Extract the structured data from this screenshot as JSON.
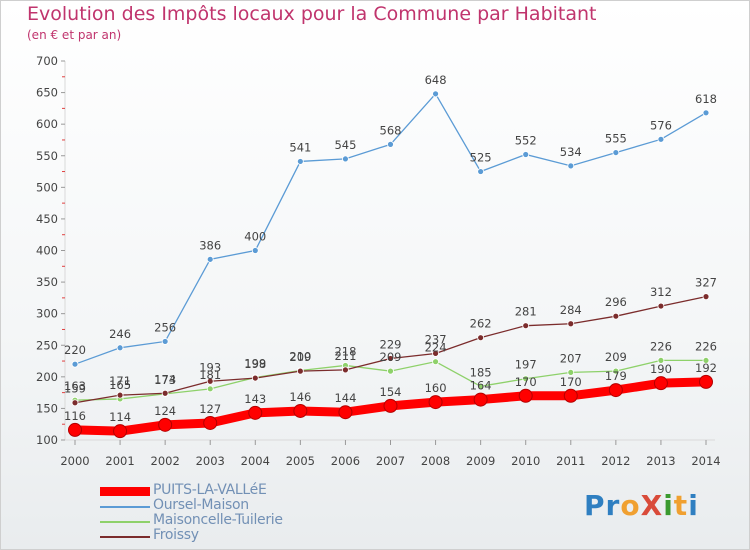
{
  "header": {
    "title": "Evolution des Impôts locaux pour la Commune par Habitant",
    "subtitle": "(en € et par an)"
  },
  "logo": {
    "text": "ProXiti"
  },
  "chart_data": {
    "type": "line",
    "title": "Evolution des Impôts locaux pour la Commune par Habitant",
    "subtitle": "(en € et par an)",
    "xlabel": "",
    "ylabel": "",
    "x": [
      2000,
      2001,
      2002,
      2003,
      2004,
      2005,
      2006,
      2007,
      2008,
      2009,
      2010,
      2011,
      2012,
      2013,
      2014
    ],
    "ylim": [
      100,
      700
    ],
    "yticks": [
      100,
      150,
      200,
      250,
      300,
      350,
      400,
      450,
      500,
      550,
      600,
      650,
      700
    ],
    "grid": false,
    "legend_position": "bottom-left",
    "series": [
      {
        "name": "PUITS-LA-VALLéE",
        "color": "#ff0000",
        "values": [
          116,
          114,
          124,
          127,
          143,
          146,
          144,
          154,
          160,
          164,
          170,
          170,
          179,
          190,
          192
        ],
        "labels": [
          "116",
          "114",
          "124",
          "127",
          "143",
          "146",
          "144",
          "154",
          "160",
          "164",
          "170",
          "170",
          "179",
          "190",
          "192"
        ]
      },
      {
        "name": "Oursel-Maison",
        "color": "#5b9bd5",
        "values": [
          220,
          246,
          256,
          386,
          400,
          541,
          545,
          568,
          648,
          525,
          552,
          534,
          555,
          576,
          618
        ],
        "labels": [
          "220",
          "246",
          "256",
          "386",
          "400",
          "541",
          "545",
          "568",
          "648",
          "525",
          "552",
          "534",
          "555",
          "576",
          "618"
        ]
      },
      {
        "name": "Maisoncelle-Tuilerie",
        "color": "#8ed16a",
        "values": [
          163,
          165,
          173,
          181,
          199,
          210,
          218,
          209,
          224,
          185,
          197,
          207,
          209,
          226,
          226
        ],
        "labels": [
          "163",
          "165",
          "173",
          "181",
          "199",
          "210",
          "218",
          "209",
          "224",
          "185",
          "197",
          "207",
          "209",
          "226",
          "226"
        ]
      },
      {
        "name": "Froissy",
        "color": "#7b2c2c",
        "values": [
          159,
          171,
          174,
          193,
          198,
          209,
          211,
          229,
          237,
          262,
          281,
          284,
          296,
          312,
          327
        ],
        "labels": [
          "159",
          "171",
          "174",
          "193",
          "198",
          "209",
          "211",
          "229",
          "237",
          "262",
          "281",
          "284",
          "296",
          "312",
          "327"
        ]
      }
    ]
  }
}
